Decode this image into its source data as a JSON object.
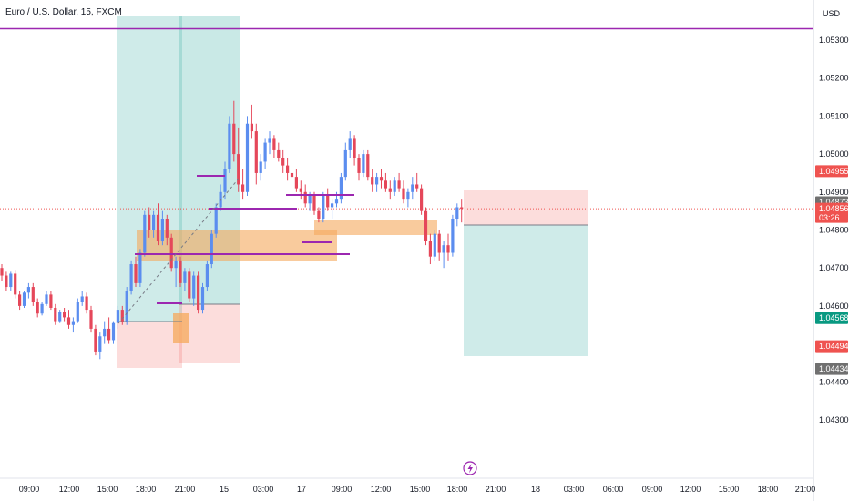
{
  "symbol_title": "Euro / U.S. Dollar, 15, FXCM",
  "currency": "USD",
  "colors": {
    "up": "#5b8def",
    "down": "#e5475a",
    "purple": "#9c27b0",
    "orange": "#f5a85b",
    "profit": "#26a69a",
    "loss": "#ef5350",
    "current_price": "#ef5350",
    "grey_tag": "#707070",
    "green_tag": "#089981"
  },
  "chart_data": {
    "type": "candlestick",
    "ylim": [
      1.043,
      1.054
    ],
    "y_ticks": [
      "1.05300",
      "1.05200",
      "1.05100",
      "1.05000",
      "1.04900",
      "1.04800",
      "1.04700",
      "1.04600",
      "1.04400",
      "1.04300"
    ],
    "x_ticks": [
      "09:00",
      "12:00",
      "15:00",
      "18:00",
      "21:00",
      "15",
      "03:00",
      "17",
      "09:00",
      "12:00",
      "15:00",
      "18:00",
      "21:00",
      "18",
      "03:00",
      "06:00",
      "09:00",
      "12:00",
      "15:00",
      "18:00",
      "21:00"
    ],
    "price_tags": [
      {
        "value": 1.04955,
        "label": "1.04955",
        "color": "loss"
      },
      {
        "value": 1.04873,
        "label": "1.04873",
        "color": "grey_tag"
      },
      {
        "value": 1.04856,
        "label": "1.04856",
        "color": "current_price",
        "countdown": "03:26"
      },
      {
        "value": 1.04568,
        "label": "1.04568",
        "color": "green_tag"
      },
      {
        "value": 1.04494,
        "label": "1.04494",
        "color": "loss"
      },
      {
        "value": 1.04434,
        "label": "1.04434",
        "color": "grey_tag"
      }
    ],
    "horizontal_line": 1.0533,
    "current_price": 1.04856,
    "candles": [
      [
        1.047,
        1.0471,
        1.04665,
        1.0468
      ],
      [
        1.0468,
        1.0469,
        1.0464,
        1.0465
      ],
      [
        1.0465,
        1.0469,
        1.0464,
        1.04685
      ],
      [
        1.04685,
        1.04695,
        1.0462,
        1.0463
      ],
      [
        1.0463,
        1.0464,
        1.0459,
        1.046
      ],
      [
        1.046,
        1.0464,
        1.04595,
        1.04635
      ],
      [
        1.04635,
        1.0466,
        1.0462,
        1.0465
      ],
      [
        1.0465,
        1.0466,
        1.046,
        1.0461
      ],
      [
        1.0461,
        1.0462,
        1.0457,
        1.0458
      ],
      [
        1.0458,
        1.0461,
        1.04575,
        1.04605
      ],
      [
        1.04605,
        1.0464,
        1.046,
        1.0463
      ],
      [
        1.0463,
        1.0464,
        1.0459,
        1.04595
      ],
      [
        1.04595,
        1.04605,
        1.0455,
        1.0456
      ],
      [
        1.0456,
        1.0459,
        1.04555,
        1.04585
      ],
      [
        1.04585,
        1.04595,
        1.0456,
        1.0457
      ],
      [
        1.0457,
        1.0459,
        1.0454,
        1.0455
      ],
      [
        1.0455,
        1.0457,
        1.0453,
        1.0456
      ],
      [
        1.0456,
        1.0462,
        1.04555,
        1.0461
      ],
      [
        1.0461,
        1.0464,
        1.046,
        1.04625
      ],
      [
        1.04625,
        1.04635,
        1.0458,
        1.0459
      ],
      [
        1.0459,
        1.046,
        1.0453,
        1.0454
      ],
      [
        1.0454,
        1.0455,
        1.0447,
        1.0448
      ],
      [
        1.0448,
        1.0453,
        1.0446,
        1.0452
      ],
      [
        1.0452,
        1.0456,
        1.045,
        1.0454
      ],
      [
        1.0454,
        1.0457,
        1.045,
        1.0451
      ],
      [
        1.0451,
        1.0456,
        1.045,
        1.04555
      ],
      [
        1.04555,
        1.046,
        1.0454,
        1.0459
      ],
      [
        1.0459,
        1.046,
        1.0455,
        1.0456
      ],
      [
        1.0456,
        1.0465,
        1.0455,
        1.0464
      ],
      [
        1.0464,
        1.0472,
        1.0463,
        1.0471
      ],
      [
        1.0471,
        1.0473,
        1.0465,
        1.0466
      ],
      [
        1.0466,
        1.0475,
        1.0465,
        1.0474
      ],
      [
        1.0474,
        1.0485,
        1.0473,
        1.0484
      ],
      [
        1.0484,
        1.0486,
        1.0478,
        1.048
      ],
      [
        1.048,
        1.0485,
        1.0478,
        1.0484
      ],
      [
        1.0484,
        1.0487,
        1.0476,
        1.0477
      ],
      [
        1.0477,
        1.0485,
        1.0476,
        1.0483
      ],
      [
        1.0483,
        1.0484,
        1.0476,
        1.0478
      ],
      [
        1.0478,
        1.0479,
        1.0469,
        1.047
      ],
      [
        1.047,
        1.0473,
        1.0465,
        1.0472
      ],
      [
        1.0472,
        1.0473,
        1.0465,
        1.0466
      ],
      [
        1.0466,
        1.047,
        1.0464,
        1.0469
      ],
      [
        1.0469,
        1.047,
        1.0461,
        1.0462
      ],
      [
        1.0462,
        1.0469,
        1.046,
        1.0468
      ],
      [
        1.0468,
        1.0469,
        1.0458,
        1.0459
      ],
      [
        1.0459,
        1.0466,
        1.0458,
        1.0465
      ],
      [
        1.0465,
        1.0472,
        1.0464,
        1.0471
      ],
      [
        1.0471,
        1.048,
        1.047,
        1.0479
      ],
      [
        1.0479,
        1.0487,
        1.0478,
        1.0486
      ],
      [
        1.0486,
        1.0492,
        1.0485,
        1.049
      ],
      [
        1.049,
        1.0498,
        1.0488,
        1.0496
      ],
      [
        1.0496,
        1.051,
        1.0495,
        1.0508
      ],
      [
        1.0508,
        1.0514,
        1.0498,
        1.05
      ],
      [
        1.05,
        1.0507,
        1.049,
        1.0492
      ],
      [
        1.0492,
        1.0496,
        1.0488,
        1.049
      ],
      [
        1.049,
        1.051,
        1.0489,
        1.0508
      ],
      [
        1.0508,
        1.0513,
        1.0504,
        1.0506
      ],
      [
        1.0506,
        1.0508,
        1.0492,
        1.0495
      ],
      [
        1.0495,
        1.05,
        1.0493,
        1.0498
      ],
      [
        1.0498,
        1.0504,
        1.0496,
        1.0503
      ],
      [
        1.0503,
        1.0506,
        1.05,
        1.0504
      ],
      [
        1.0504,
        1.0505,
        1.0499,
        1.0501
      ],
      [
        1.0501,
        1.0503,
        1.0498,
        1.0499
      ],
      [
        1.0499,
        1.0501,
        1.0495,
        1.0497
      ],
      [
        1.0497,
        1.0499,
        1.0493,
        1.0495
      ],
      [
        1.0495,
        1.0497,
        1.0492,
        1.0494
      ],
      [
        1.0494,
        1.0496,
        1.049,
        1.0491
      ],
      [
        1.0491,
        1.0493,
        1.0488,
        1.049
      ],
      [
        1.049,
        1.0492,
        1.0486,
        1.0487
      ],
      [
        1.0487,
        1.049,
        1.0485,
        1.0489
      ],
      [
        1.0489,
        1.049,
        1.0484,
        1.0485
      ],
      [
        1.0485,
        1.0486,
        1.0482,
        1.0483
      ],
      [
        1.0483,
        1.049,
        1.0482,
        1.0489
      ],
      [
        1.0489,
        1.0491,
        1.0485,
        1.0486
      ],
      [
        1.0486,
        1.0488,
        1.0483,
        1.0487
      ],
      [
        1.0487,
        1.049,
        1.0486,
        1.0488
      ],
      [
        1.0488,
        1.0495,
        1.0487,
        1.0494
      ],
      [
        1.0494,
        1.0503,
        1.0493,
        1.0501
      ],
      [
        1.0501,
        1.0506,
        1.0499,
        1.0504
      ],
      [
        1.0504,
        1.0505,
        1.0497,
        1.0499
      ],
      [
        1.0499,
        1.05,
        1.0493,
        1.0495
      ],
      [
        1.0495,
        1.0501,
        1.0494,
        1.05
      ],
      [
        1.05,
        1.0501,
        1.0493,
        1.0494
      ],
      [
        1.0494,
        1.0496,
        1.049,
        1.0492
      ],
      [
        1.0492,
        1.0495,
        1.049,
        1.0494
      ],
      [
        1.0494,
        1.0496,
        1.0491,
        1.0493
      ],
      [
        1.0493,
        1.0495,
        1.049,
        1.0491
      ],
      [
        1.0491,
        1.0493,
        1.0488,
        1.049
      ],
      [
        1.049,
        1.0494,
        1.0489,
        1.0493
      ],
      [
        1.0493,
        1.0495,
        1.049,
        1.0491
      ],
      [
        1.0491,
        1.0493,
        1.0487,
        1.0488
      ],
      [
        1.0488,
        1.0491,
        1.0486,
        1.049
      ],
      [
        1.049,
        1.0494,
        1.0488,
        1.0492
      ],
      [
        1.0492,
        1.0495,
        1.049,
        1.0491
      ],
      [
        1.0491,
        1.0492,
        1.0484,
        1.0485
      ],
      [
        1.0485,
        1.0486,
        1.0476,
        1.0477
      ],
      [
        1.0477,
        1.0479,
        1.0471,
        1.0473
      ],
      [
        1.0473,
        1.048,
        1.0472,
        1.0479
      ],
      [
        1.0479,
        1.048,
        1.0472,
        1.0474
      ],
      [
        1.0474,
        1.0477,
        1.047,
        1.0476
      ],
      [
        1.0476,
        1.0479,
        1.0472,
        1.0474
      ],
      [
        1.0474,
        1.0484,
        1.0473,
        1.0483
      ],
      [
        1.0483,
        1.0487,
        1.0481,
        1.0486
      ],
      [
        1.0486,
        1.0488,
        1.0482,
        1.04856
      ]
    ]
  }
}
